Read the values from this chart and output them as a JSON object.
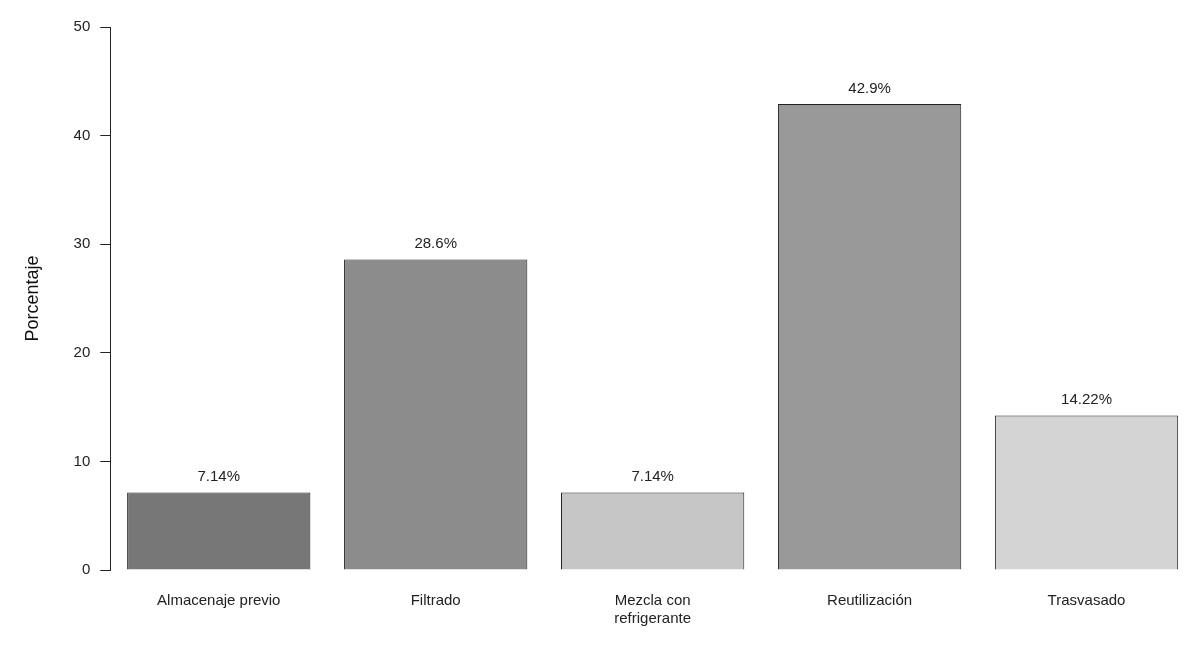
{
  "chart_data": {
    "type": "bar",
    "ylabel": "Porcentaje",
    "categories": [
      "Almacenaje previo",
      "Filtrado",
      "Mezcla con refrigerante",
      "Reutilización",
      "Trasvasado"
    ],
    "values": [
      7.14,
      28.6,
      7.14,
      42.9,
      14.22
    ],
    "colors": [
      "#777777",
      "#8c8c8c",
      "#c6c6c6",
      "#999999",
      "#d4d4d4"
    ],
    "value_labels": [
      "7.14%",
      "28.6%",
      "7.14%",
      "42.9%",
      "14.22%"
    ],
    "ylim": [
      0,
      50
    ],
    "yticks": [
      0,
      10,
      20,
      30,
      40,
      50
    ],
    "grid": false,
    "legend": false
  }
}
